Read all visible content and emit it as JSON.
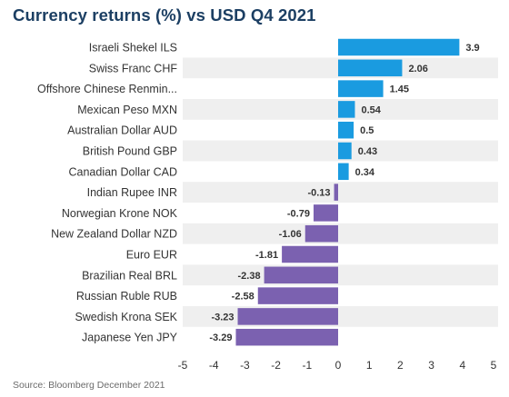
{
  "title": "Currency returns (%) vs USD Q4 2021",
  "source": "Source: Bloomberg December 2021",
  "colors": {
    "positive": "#1a9be0",
    "negative": "#7b61b0",
    "band": "#efefef"
  },
  "chart_data": {
    "type": "bar",
    "orientation": "horizontal",
    "title": "Currency returns (%) vs USD Q4 2021",
    "xlabel": "",
    "ylabel": "",
    "xlim": [
      -5,
      5
    ],
    "xticks": [
      "-5",
      "-4",
      "-3",
      "-2",
      "-1",
      "0",
      "1",
      "2",
      "3",
      "4",
      "5"
    ],
    "grid": false,
    "categories": [
      "Israeli Shekel ILS",
      "Swiss Franc CHF",
      "Offshore Chinese Renmin...",
      "Mexican Peso MXN",
      "Australian Dollar AUD",
      "British Pound GBP",
      "Canadian Dollar CAD",
      "Indian Rupee INR",
      "Norwegian Krone NOK",
      "New Zealand Dollar NZD",
      "Euro EUR",
      "Brazilian Real BRL",
      "Russian Ruble RUB",
      "Swedish Krona SEK",
      "Japanese Yen JPY"
    ],
    "values": [
      3.9,
      2.06,
      1.45,
      0.54,
      0.5,
      0.43,
      0.34,
      -0.13,
      -0.79,
      -1.06,
      -1.81,
      -2.38,
      -2.58,
      -3.23,
      -3.29
    ],
    "labels": [
      "3.9",
      "2.06",
      "1.45",
      "0.54",
      "0.5",
      "0.43",
      "0.34",
      "-0.13",
      "-0.79",
      "-1.06",
      "-1.81",
      "-2.38",
      "-2.58",
      "-3.23",
      "-3.29"
    ]
  }
}
